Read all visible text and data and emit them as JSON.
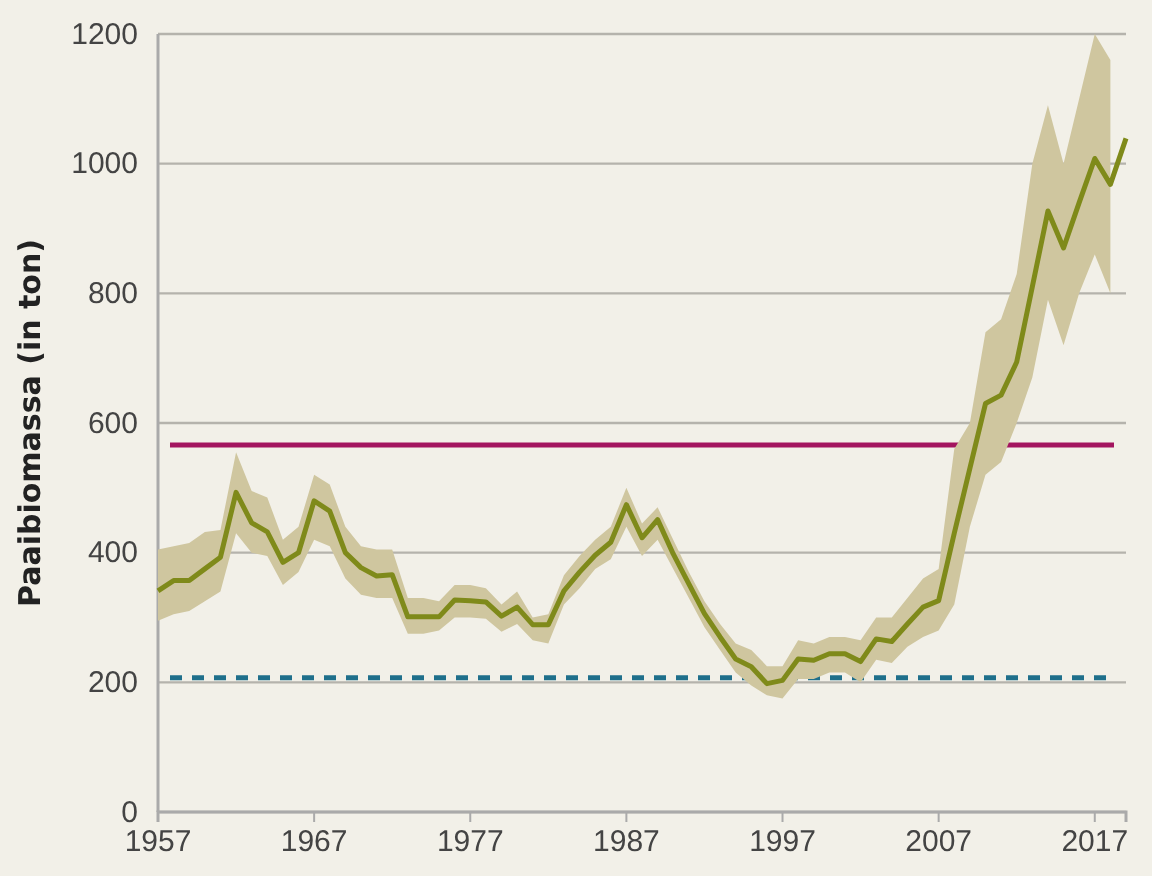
{
  "chart_data": {
    "type": "line",
    "ylabel": "Paaibiomassa (in ton)",
    "x": [
      1957,
      1958,
      1959,
      1960,
      1961,
      1962,
      1963,
      1964,
      1965,
      1966,
      1967,
      1968,
      1969,
      1970,
      1971,
      1972,
      1973,
      1974,
      1975,
      1976,
      1977,
      1978,
      1979,
      1980,
      1981,
      1982,
      1983,
      1984,
      1985,
      1986,
      1987,
      1988,
      1989,
      1990,
      1991,
      1992,
      1993,
      1994,
      1995,
      1996,
      1997,
      1998,
      1999,
      2000,
      2001,
      2002,
      2003,
      2004,
      2005,
      2006,
      2007,
      2008,
      2009,
      2010,
      2011,
      2012,
      2013,
      2014,
      2015,
      2016,
      2017,
      2018,
      2019
    ],
    "series": [
      {
        "color": "#7f8a1a",
        "values": [
          341,
          357,
          357,
          375,
          393,
          493,
          446,
          432,
          385,
          400,
          480,
          464,
          400,
          377,
          364,
          366,
          301,
          301,
          301,
          327,
          326,
          324,
          302,
          316,
          289,
          289,
          341,
          370,
          396,
          416,
          474,
          423,
          451,
          398,
          352,
          306,
          270,
          236,
          224,
          198,
          203,
          236,
          234,
          244,
          244,
          232,
          267,
          263,
          290,
          316,
          326,
          430,
          530,
          630,
          643,
          694,
          810,
          927,
          870,
          940,
          1008,
          968,
          1039
        ],
        "upper": [
          405,
          410,
          415,
          432,
          435,
          555,
          495,
          485,
          420,
          440,
          520,
          505,
          440,
          410,
          405,
          405,
          330,
          330,
          325,
          350,
          350,
          345,
          320,
          340,
          300,
          305,
          365,
          395,
          420,
          440,
          500,
          445,
          470,
          420,
          370,
          325,
          290,
          260,
          250,
          225,
          225,
          265,
          260,
          270,
          270,
          265,
          300,
          300,
          330,
          360,
          375,
          560,
          600,
          740,
          760,
          830,
          1000,
          1090,
          1000,
          1100,
          1200,
          1160,
          null
        ],
        "lower": [
          295,
          305,
          310,
          325,
          340,
          430,
          400,
          395,
          350,
          370,
          420,
          410,
          360,
          335,
          330,
          330,
          275,
          275,
          280,
          300,
          300,
          298,
          278,
          290,
          265,
          260,
          320,
          345,
          375,
          390,
          440,
          395,
          420,
          375,
          330,
          285,
          250,
          215,
          195,
          180,
          175,
          205,
          205,
          215,
          215,
          200,
          235,
          230,
          255,
          270,
          280,
          320,
          440,
          520,
          540,
          600,
          670,
          790,
          720,
          800,
          860,
          800,
          null
        ]
      }
    ],
    "xlim": [
      1957,
      2019
    ],
    "xticks": [
      1957,
      1967,
      1977,
      1987,
      1997,
      2007,
      2017
    ],
    "ylim": [
      0,
      1200
    ],
    "yticks": [
      0,
      200,
      400,
      600,
      800,
      1000,
      1200
    ],
    "grid": "y",
    "line_style": "solid",
    "marker": "none",
    "ref_lines": [
      {
        "axis": "y",
        "value": 566,
        "label": null,
        "color": "#a3155f",
        "line_style": "solid"
      },
      {
        "axis": "y",
        "value": 207,
        "label": null,
        "color": "#1f6f8b",
        "line_style": "dashed"
      }
    ]
  }
}
